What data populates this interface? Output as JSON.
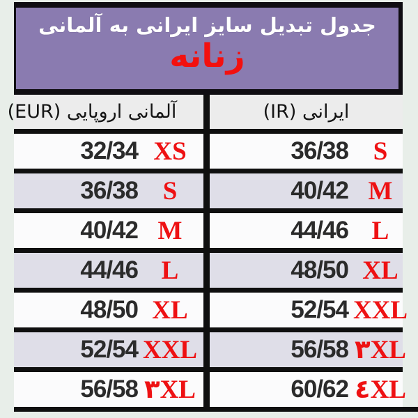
{
  "page": {
    "background": "#e8eee9",
    "accent_red": "#ee1113",
    "purple": "#8a7bb0",
    "border_black": "#0f0f0f",
    "row_bg": "#fbfbfc",
    "row_alt_bg": "#dfdee8",
    "header_bg": "#ececec"
  },
  "title_box": {
    "title": "جدول تبدیل سایز ایرانی به آلمانی",
    "subtitle": "زنانه"
  },
  "table": {
    "col_ir_label": "ایرانی (IR)",
    "col_eur_label": "آلمانی اروپایی (EUR)",
    "rows": [
      {
        "ir_size": "36/38",
        "ir_label": "S",
        "eur_size": "32/34",
        "eur_label": "XS"
      },
      {
        "ir_size": "40/42",
        "ir_label": "M",
        "eur_size": "36/38",
        "eur_label": "S"
      },
      {
        "ir_size": "44/46",
        "ir_label": "L",
        "eur_size": "40/42",
        "eur_label": "M"
      },
      {
        "ir_size": "48/50",
        "ir_label": "XL",
        "eur_size": "44/46",
        "eur_label": "L"
      },
      {
        "ir_size": "52/54",
        "ir_label": "XXL",
        "eur_size": "48/50",
        "eur_label": "XL"
      },
      {
        "ir_size": "56/58",
        "ir_label": "۳XL",
        "eur_size": "52/54",
        "eur_label": "XXL"
      },
      {
        "ir_size": "60/62",
        "ir_label": "٤XL",
        "eur_size": "56/58",
        "eur_label": "۳XL"
      }
    ]
  },
  "chart_data": {
    "type": "table",
    "title": "جدول تبدیل سایز ایرانی به آلمانی",
    "subtitle": "زنانه",
    "columns": [
      "ایرانی (IR)",
      "آلمانی اروپایی (EUR)"
    ],
    "rows": [
      [
        "36/38 S",
        "32/34 XS"
      ],
      [
        "40/42 M",
        "36/38 S"
      ],
      [
        "44/46 L",
        "40/42 M"
      ],
      [
        "48/50 XL",
        "44/46 L"
      ],
      [
        "52/54 XXL",
        "48/50 XL"
      ],
      [
        "56/58 ۳XL",
        "52/54 XXL"
      ],
      [
        "60/62 ٤XL",
        "56/58 ۳XL"
      ]
    ],
    "layout": "two column groups, RTL; Iranian sizes on right, German/European on left; alternating row shading; thick black grid borders"
  }
}
